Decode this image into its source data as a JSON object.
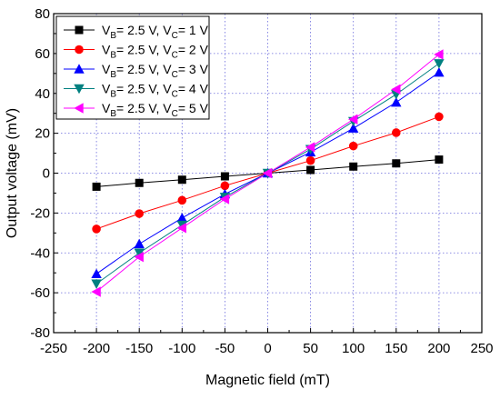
{
  "chart_data": {
    "type": "line",
    "xlabel": "Magnetic field (mT)",
    "ylabel": "Output voltage (mV)",
    "xlim": [
      -250,
      250
    ],
    "ylim": [
      -80,
      80
    ],
    "xticks": [
      -250,
      -200,
      -150,
      -100,
      -50,
      0,
      50,
      100,
      150,
      200,
      250
    ],
    "yticks": [
      -80,
      -60,
      -40,
      -20,
      0,
      20,
      40,
      60,
      80
    ],
    "grid": "dotted, x and y",
    "legend_position": "top-left",
    "x": [
      -200,
      -150,
      -100,
      -50,
      0,
      50,
      100,
      150,
      200
    ],
    "series": [
      {
        "vb": "2.5 V",
        "vc": "1 V",
        "marker": "square",
        "color": "#000000",
        "values": [
          -6.8,
          -4.9,
          -3.3,
          -1.6,
          0,
          1.6,
          3.3,
          4.9,
          6.8
        ]
      },
      {
        "vb": "2.5 V",
        "vc": "2 V",
        "marker": "circle",
        "color": "#ff0000",
        "values": [
          -28.0,
          -20.3,
          -13.6,
          -6.3,
          0,
          6.3,
          13.6,
          20.3,
          28.3
        ]
      },
      {
        "vb": "2.5 V",
        "vc": "3 V",
        "marker": "triangle-up",
        "color": "#0000ff",
        "values": [
          -50.5,
          -35.5,
          -22.5,
          -10.5,
          0,
          10.5,
          22.5,
          35.5,
          50.5
        ]
      },
      {
        "vb": "2.5 V",
        "vc": "4 V",
        "marker": "triangle-down",
        "color": "#008080",
        "values": [
          -55.5,
          -40.0,
          -26.0,
          -12.0,
          0,
          12.0,
          26.0,
          39.5,
          55.0
        ]
      },
      {
        "vb": "2.5 V",
        "vc": "5 V",
        "marker": "triangle-left",
        "color": "#ff00ff",
        "values": [
          -59.5,
          -42.0,
          -27.5,
          -13.0,
          0,
          13.0,
          27.0,
          42.0,
          59.5
        ]
      }
    ]
  }
}
